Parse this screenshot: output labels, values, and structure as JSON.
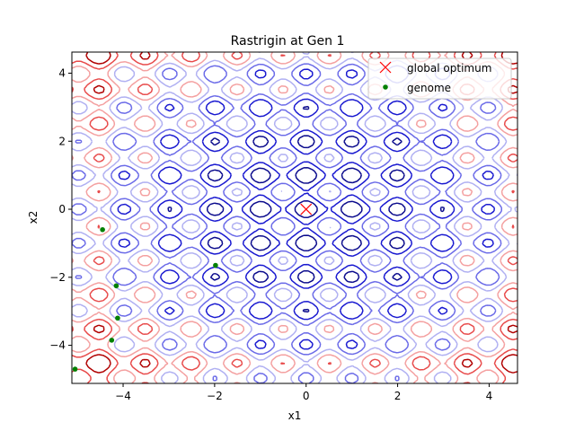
{
  "chart_data": {
    "type": "contour",
    "title": "Rastrigin at Gen 1",
    "xlabel": "x1",
    "ylabel": "x2",
    "xlim": [
      -5.12,
      4.62
    ],
    "ylim": [
      -5.12,
      4.62
    ],
    "xticks": [
      -4,
      -2,
      0,
      2,
      4
    ],
    "yticks": [
      -4,
      -2,
      0,
      2,
      4
    ],
    "xtick_labels": [
      "−4",
      "−2",
      "0",
      "2",
      "4"
    ],
    "ytick_labels": [
      "−4",
      "−2",
      "0",
      "2",
      "4"
    ],
    "grid": false,
    "legend_placement": "upper right",
    "function": "rastrigin",
    "contour_levels": [
      10,
      20,
      30,
      40,
      50,
      60,
      70
    ],
    "contour_colors": [
      "#0a0a8c",
      "#1818d0",
      "#6a6ae8",
      "#b0b0f2",
      "#f4a0a0",
      "#e84a4a",
      "#b00000"
    ],
    "series": [
      {
        "name": "global optimum",
        "marker": "x",
        "color": "#ff0000",
        "points": [
          [
            0,
            0
          ]
        ]
      },
      {
        "name": "genome",
        "marker": "o",
        "color": "#008000",
        "points": [
          [
            -4.45,
            -0.6
          ],
          [
            -1.98,
            -1.65
          ],
          [
            -4.15,
            -2.25
          ],
          [
            -4.12,
            -3.2
          ],
          [
            -4.25,
            -3.85
          ],
          [
            -5.05,
            -4.7
          ]
        ]
      }
    ]
  }
}
